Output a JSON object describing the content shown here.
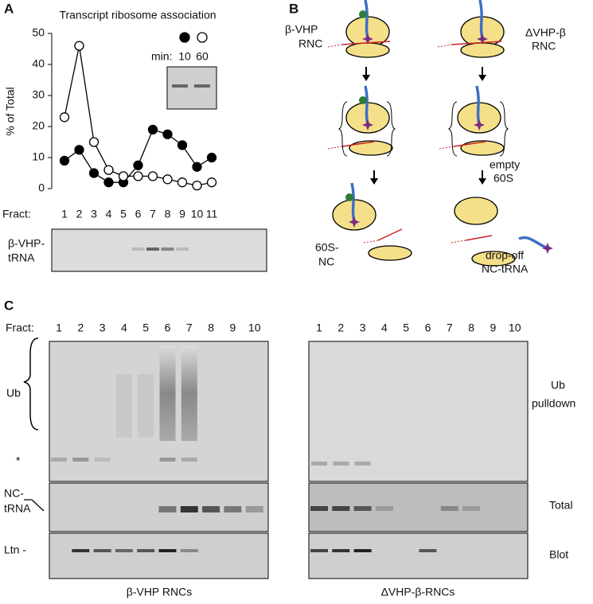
{
  "panel_labels": [
    "A",
    "B",
    "C"
  ],
  "chart_data": {
    "type": "line",
    "title": "Transcript ribosome association",
    "y_label": "% of Total",
    "x_label": "Fract:",
    "categories": [
      "1",
      "2",
      "3",
      "4",
      "5",
      "6",
      "7",
      "8",
      "9",
      "10",
      "11"
    ],
    "legend_title": "min:",
    "series": [
      {
        "name": "10",
        "color": "#000000",
        "values": [
          9,
          12.5,
          5,
          2,
          2,
          7.5,
          19,
          17.5,
          14,
          7,
          10
        ]
      },
      {
        "name": "60",
        "color": "#ffffff",
        "values": [
          23,
          46,
          15,
          6,
          4,
          4,
          4,
          3,
          2,
          1,
          2
        ]
      }
    ],
    "ylim": [
      0,
      50
    ],
    "yticks": [
      0,
      10,
      20,
      30,
      40,
      50
    ]
  },
  "panel_a": {
    "gel_label": [
      "β-VHP-",
      "tRNA"
    ]
  },
  "panel_b": {
    "left_rnc": [
      "β-VHP",
      "RNC"
    ],
    "right_rnc": [
      "ΔVHP-β",
      "RNC"
    ],
    "empty_60s": [
      "empty",
      "60S"
    ],
    "nc_60s": [
      "60S-",
      "NC"
    ],
    "drop_off": [
      "drop-off",
      "NC-tRNA"
    ]
  },
  "panel_c": {
    "fract_label": "Fract:",
    "fractions_left": [
      "1",
      "2",
      "3",
      "4",
      "5",
      "6",
      "7",
      "8",
      "9",
      "10"
    ],
    "fractions_right": [
      "1",
      "2",
      "3",
      "4",
      "5",
      "6",
      "7",
      "8",
      "9",
      "10"
    ],
    "ub": "Ub",
    "asterisk": "*",
    "nc_trna": [
      "NC-",
      "tRNA"
    ],
    "ltn": "Ltn -",
    "ub_pulldown": [
      "Ub",
      "pulldown"
    ],
    "total": "Total",
    "blot": "Blot",
    "left_caption": "β-VHP RNCs",
    "right_caption": "ΔVHP-β-RNCs"
  }
}
